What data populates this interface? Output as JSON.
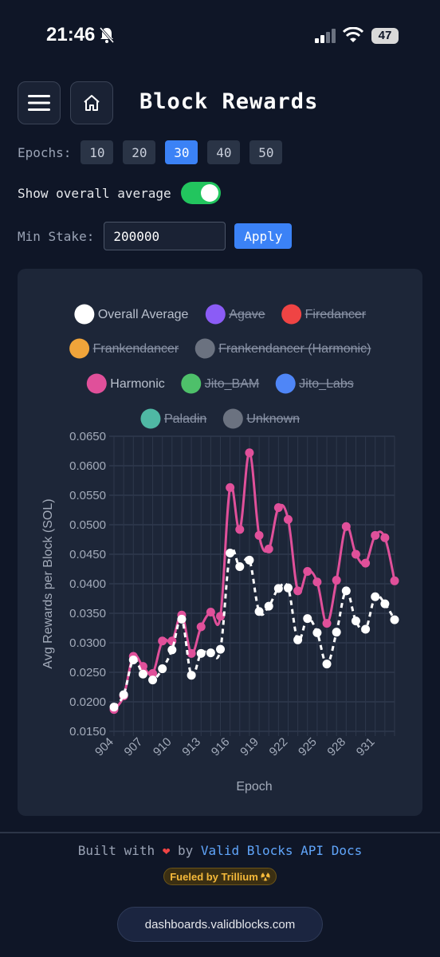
{
  "status_bar": {
    "time": "21:46",
    "battery": "47"
  },
  "header": {
    "title": "Block Rewards",
    "menu_icon": "hamburger-menu-icon",
    "home_icon": "home-icon"
  },
  "controls": {
    "epochs_label": "Epochs:",
    "epoch_options": [
      "10",
      "20",
      "30",
      "40",
      "50"
    ],
    "epoch_selected": "30",
    "overall_avg_label": "Show overall average",
    "overall_avg_enabled": true,
    "min_stake_label": "Min Stake:",
    "min_stake_value": "200000",
    "apply_label": "Apply"
  },
  "chart_data": {
    "type": "line",
    "xlabel": "Epoch",
    "ylabel": "Avg Rewards per Block (SOL)",
    "ylim": [
      0.015,
      0.065
    ],
    "yticks": [
      "0.0650",
      "0.0600",
      "0.0550",
      "0.0500",
      "0.0450",
      "0.0400",
      "0.0350",
      "0.0300",
      "0.0250",
      "0.0200",
      "0.0150"
    ],
    "xticks": [
      "904",
      "907",
      "910",
      "913",
      "916",
      "919",
      "922",
      "925",
      "928",
      "931"
    ],
    "x": [
      904,
      905,
      906,
      907,
      908,
      909,
      910,
      911,
      912,
      913,
      914,
      915,
      916,
      917,
      918,
      919,
      920,
      921,
      922,
      923,
      924,
      925,
      926,
      927,
      928,
      929,
      930,
      931,
      932,
      933
    ],
    "legend": [
      {
        "name": "Overall Average",
        "color": "#ffffff",
        "hidden": false
      },
      {
        "name": "Agave",
        "color": "#8b5cf6",
        "hidden": true
      },
      {
        "name": "Firedancer",
        "color": "#ef4444",
        "hidden": true
      },
      {
        "name": "Frankendancer",
        "color": "#f0a43a",
        "hidden": true
      },
      {
        "name": "Frankendancer (Harmonic)",
        "color": "#6b7280",
        "hidden": true
      },
      {
        "name": "Harmonic",
        "color": "#e0509a",
        "hidden": false
      },
      {
        "name": "Jito_BAM",
        "color": "#4ec06a",
        "hidden": true
      },
      {
        "name": "Jito_Labs",
        "color": "#4f86f7",
        "hidden": true
      },
      {
        "name": "Paladin",
        "color": "#4fb8a4",
        "hidden": true
      },
      {
        "name": "Unknown",
        "color": "#6b7280",
        "hidden": true
      }
    ],
    "series": [
      {
        "name": "Harmonic",
        "color": "#e0509a",
        "dashed": false,
        "values": [
          0.0187,
          0.021,
          0.0277,
          0.026,
          0.0248,
          0.0303,
          0.0303,
          0.0347,
          0.0282,
          0.0327,
          0.0352,
          0.0345,
          0.0563,
          0.0492,
          0.0622,
          0.0482,
          0.0459,
          0.0529,
          0.0509,
          0.0388,
          0.0421,
          0.0403,
          0.0333,
          0.0406,
          0.0497,
          0.045,
          0.0435,
          0.0482,
          0.0478,
          0.0405
        ]
      },
      {
        "name": "Overall Average",
        "color": "#ffffff",
        "dashed": true,
        "values": [
          0.0191,
          0.0212,
          0.0271,
          0.0247,
          0.0237,
          0.0256,
          0.0288,
          0.034,
          0.0245,
          0.0282,
          0.0283,
          0.0289,
          0.0452,
          0.0429,
          0.044,
          0.0353,
          0.0362,
          0.0392,
          0.0393,
          0.0305,
          0.0341,
          0.0317,
          0.0264,
          0.0318,
          0.0388,
          0.0337,
          0.0323,
          0.0378,
          0.0366,
          0.0339
        ]
      }
    ],
    "grid": true,
    "legend_position": "top"
  },
  "footer": {
    "built_with": "Built with",
    "heart": "❤",
    "by": "by",
    "link_valid_blocks": "Valid Blocks",
    "link_api_docs": "API Docs",
    "fueled_by": "Fueled by Trillium",
    "domain": "dashboards.validblocks.com"
  }
}
